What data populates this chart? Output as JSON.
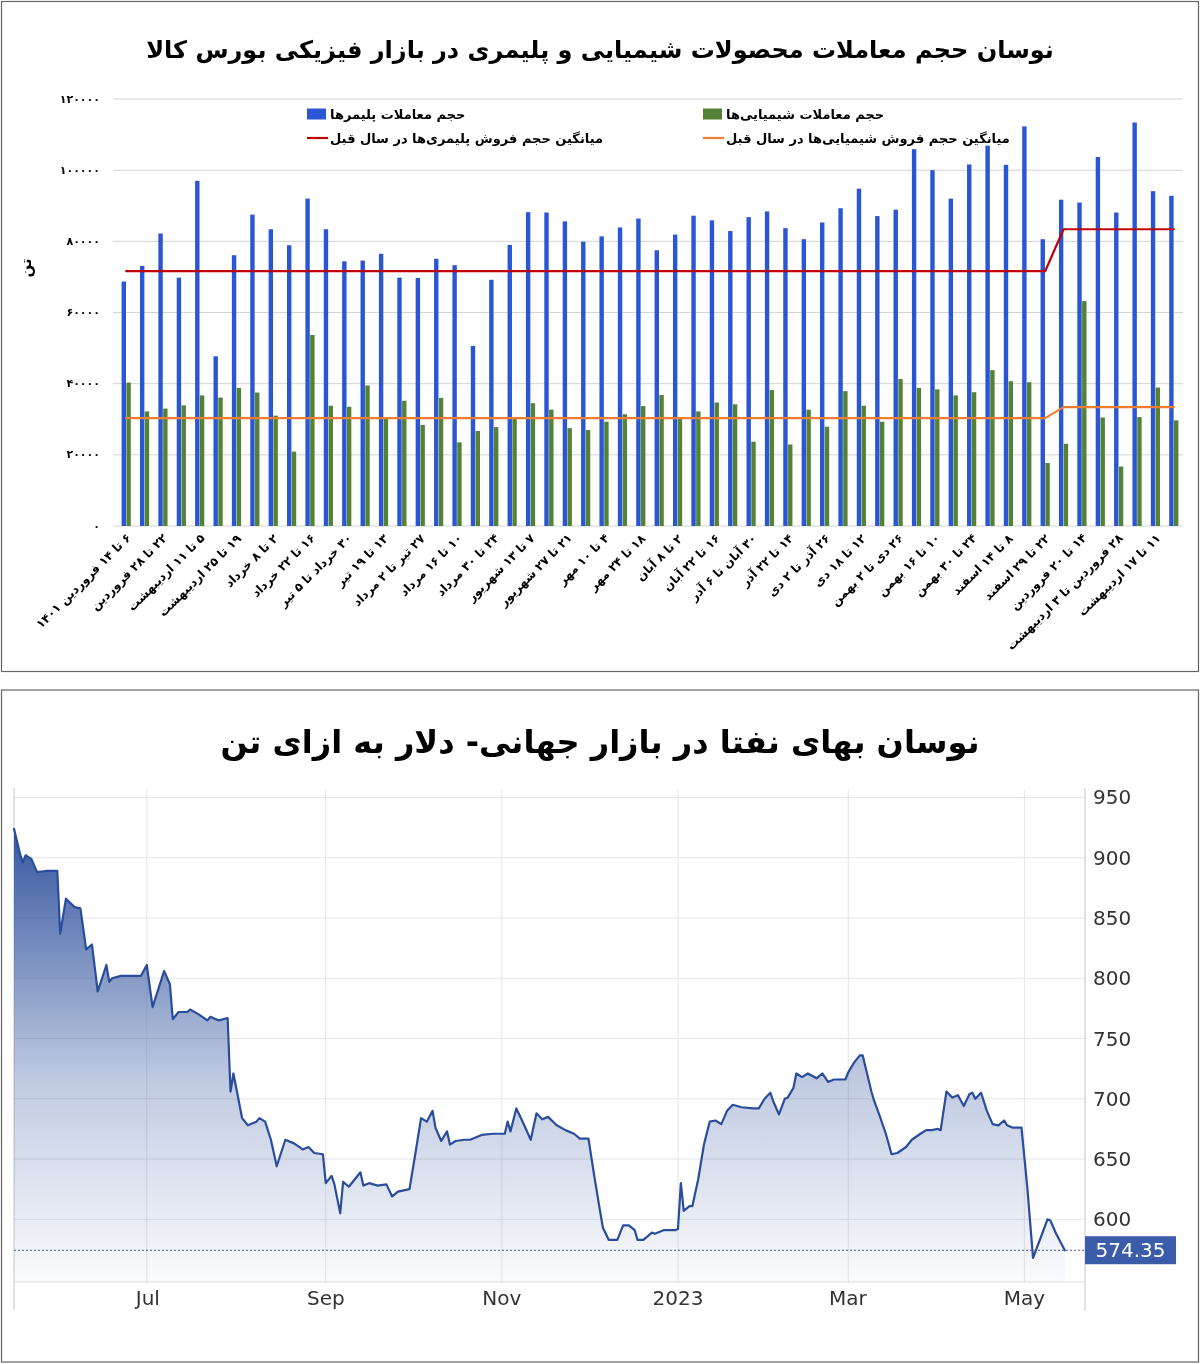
{
  "chart_data": [
    {
      "type": "bar",
      "title": "نوسان حجم معاملات محصولات شیمیایی و پلیمری در بازار فیزیکی بورس کالا",
      "ylabel": "تن",
      "categories": [
        "۶ تا ۱۴ فروردین ۱۴۰۱",
        null,
        "۲۲ تا ۲۸ فروردین",
        null,
        "۵ تا ۱۱ اردیبهشت",
        null,
        "۱۹ تا ۲۵ اردیبهشت",
        null,
        "۲ تا ۸ خرداد",
        null,
        "۱۶ تا ۲۲ خرداد",
        null,
        "۳۰ خرداد تا ۵ تیر",
        null,
        "۱۳ تا ۱۹ تیر",
        null,
        "۲۷ تیر تا ۲ مرداد",
        null,
        "۱۰ تا ۱۶ مرداد",
        null,
        "۲۴ تا ۳۰ مرداد",
        null,
        "۷ تا ۱۳ شهریور",
        null,
        "۲۱ تا ۲۷ شهریور",
        null,
        "۴ تا ۱۰ مهر",
        null,
        "۱۸ تا ۲۴ مهر",
        null,
        "۲ تا ۸ آبان",
        null,
        "۱۶ تا ۲۲ آبان",
        null,
        "۳۰ آبان تا ۶ آذر",
        null,
        "۱۴ تا ۲۲ آذر",
        null,
        "۲۶ آذر تا ۲ دی",
        null,
        "۱۲ تا ۱۸ دی",
        null,
        "۲۶ دی تا ۲ بهمن",
        null,
        "۱۰ تا ۱۶ بهمن",
        null,
        "۲۴ تا ۳۰ بهمن",
        null,
        "۸ تا ۱۴ اسفند",
        null,
        "۲۲ تا ۲۹ اسفند",
        null,
        "۱۴ تا ۲۰ فروردین",
        null,
        "۲۸ فروردین تا ۳ اردیبهشت",
        null,
        "۱۱ تا ۱۷ اردیبهشت",
        null
      ],
      "series": [
        {
          "name": "حجم معاملات پلیمرها",
          "color": "#2a56d6",
          "values": [
            68700,
            73100,
            82200,
            69800,
            97000,
            47700,
            76100,
            87500,
            83400,
            78900,
            92000,
            83400,
            74400,
            74600,
            76500,
            69800,
            69700,
            75100,
            73300,
            50600,
            69200,
            79000,
            88200,
            88100,
            85600,
            79900,
            81400,
            83900,
            86400,
            77500,
            81900,
            87200,
            85900,
            82900,
            86800,
            88400,
            83700,
            80600,
            85300,
            89300,
            94800,
            87100,
            88900,
            105900,
            100000,
            92000,
            101600,
            106900,
            101500,
            112300,
            80600,
            91700,
            90900,
            103700,
            88100,
            113400,
            94100,
            92800
          ]
        },
        {
          "name": "حجم معاملات شیمیایی‌ها",
          "color": "#548235",
          "values": [
            40300,
            32200,
            33000,
            33900,
            36700,
            36100,
            38800,
            37500,
            31000,
            20900,
            53700,
            33800,
            33500,
            39500,
            30300,
            35200,
            28400,
            36000,
            23500,
            26700,
            27800,
            30300,
            34500,
            32700,
            27500,
            27000,
            29300,
            31400,
            33700,
            36800,
            30300,
            32200,
            34700,
            34200,
            23700,
            38200,
            22900,
            32700,
            27900,
            37900,
            33800,
            29300,
            41300,
            38800,
            38400,
            36700,
            37600,
            43800,
            40700,
            40400,
            17700,
            23100,
            63200,
            30500,
            16700,
            30600,
            38900,
            29700
          ]
        },
        {
          "name": "میانگین حجم فروش پلیمری‌ها در سال قبل",
          "type": "line",
          "color": "#c00000",
          "values": [
            71600,
            71600,
            71600,
            71600,
            71600,
            71600,
            71600,
            71600,
            71600,
            71600,
            71600,
            71600,
            71600,
            71600,
            71600,
            71600,
            71600,
            71600,
            71600,
            71600,
            71600,
            71600,
            71600,
            71600,
            71600,
            71600,
            71600,
            71600,
            71600,
            71600,
            71600,
            71600,
            71600,
            71600,
            71600,
            71600,
            71600,
            71600,
            71600,
            71600,
            71600,
            71600,
            71600,
            71600,
            71600,
            71600,
            71600,
            71600,
            71600,
            71600,
            71600,
            83400,
            83400,
            83400,
            83400,
            83400,
            83400,
            83400
          ]
        },
        {
          "name": "میانگین حجم فروش شیمیایی‌ها در سال قبل",
          "type": "line",
          "color": "#ed7d31",
          "values": [
            30300,
            30300,
            30300,
            30300,
            30300,
            30300,
            30300,
            30300,
            30300,
            30300,
            30300,
            30300,
            30300,
            30300,
            30300,
            30300,
            30300,
            30300,
            30300,
            30300,
            30300,
            30300,
            30300,
            30300,
            30300,
            30300,
            30300,
            30300,
            30300,
            30300,
            30300,
            30300,
            30300,
            30300,
            30300,
            30300,
            30300,
            30300,
            30300,
            30300,
            30300,
            30300,
            30300,
            30300,
            30300,
            30300,
            30300,
            30300,
            30300,
            30300,
            30300,
            33400,
            33400,
            33400,
            33400,
            33400,
            33400,
            33400
          ]
        }
      ],
      "ylim": [
        0,
        120000
      ],
      "yticks": [
        {
          "value": 0,
          "label": "۰"
        },
        {
          "value": 20000,
          "label": "۲۰۰۰۰"
        },
        {
          "value": 40000,
          "label": "۴۰۰۰۰"
        },
        {
          "value": 60000,
          "label": "۶۰۰۰۰"
        },
        {
          "value": 80000,
          "label": "۸۰۰۰۰"
        },
        {
          "value": 100000,
          "label": "۱۰۰۰۰۰"
        },
        {
          "value": 120000,
          "label": "۱۲۰۰۰۰"
        }
      ],
      "grid": "y",
      "legend": "top"
    },
    {
      "type": "area",
      "title": "نوسان بهای نفتا در بازار جهانی- دلار به ازای تن",
      "color": "#2a4d9b",
      "x": [
        "2022-05-16",
        "2022-05-18",
        "2022-05-19",
        "2022-05-20",
        "2022-05-22",
        "2022-05-24",
        "2022-05-27",
        "2022-05-31",
        "2022-06-01",
        "2022-06-03",
        "2022-06-06",
        "2022-06-08",
        "2022-06-10",
        "2022-06-12",
        "2022-06-14",
        "2022-06-17",
        "2022-06-18",
        "2022-06-19",
        "2022-06-22",
        "2022-06-27",
        "2022-06-29",
        "2022-07-01",
        "2022-07-03",
        "2022-07-05",
        "2022-07-07",
        "2022-07-09",
        "2022-07-10",
        "2022-07-12",
        "2022-07-15",
        "2022-07-16",
        "2022-07-19",
        "2022-07-22",
        "2022-07-23",
        "2022-07-26",
        "2022-07-29",
        "2022-07-30",
        "2022-07-31",
        "2022-08-01",
        "2022-08-03",
        "2022-08-05",
        "2022-08-08",
        "2022-08-09",
        "2022-08-11",
        "2022-08-13",
        "2022-08-15",
        "2022-08-18",
        "2022-08-21",
        "2022-08-24",
        "2022-08-26",
        "2022-08-28",
        "2022-08-31",
        "2022-09-01",
        "2022-09-03",
        "2022-09-04",
        "2022-09-06",
        "2022-09-07",
        "2022-09-09",
        "2022-09-11",
        "2022-09-13",
        "2022-09-14",
        "2022-09-16",
        "2022-09-19",
        "2022-09-22",
        "2022-09-24",
        "2022-09-26",
        "2022-09-30",
        "2022-10-02",
        "2022-10-04",
        "2022-10-06",
        "2022-10-08",
        "2022-10-09",
        "2022-10-11",
        "2022-10-13",
        "2022-10-14",
        "2022-10-16",
        "2022-10-19",
        "2022-10-21",
        "2022-10-25",
        "2022-10-29",
        "2022-11-02",
        "2022-11-03",
        "2022-11-04",
        "2022-11-06",
        "2022-11-08",
        "2022-11-11",
        "2022-11-13",
        "2022-11-15",
        "2022-11-17",
        "2022-11-20",
        "2022-11-23",
        "2022-11-26",
        "2022-11-28",
        "2022-12-01",
        "2022-12-03",
        "2022-12-05",
        "2022-12-06",
        "2022-12-08",
        "2022-12-11",
        "2022-12-13",
        "2022-12-15",
        "2022-12-17",
        "2022-12-18",
        "2022-12-20",
        "2022-12-23",
        "2022-12-24",
        "2022-12-27",
        "2022-12-31",
        "2023-01-01",
        "2023-01-02",
        "2023-01-03",
        "2023-01-05",
        "2023-01-06",
        "2023-01-08",
        "2023-01-10",
        "2023-01-12",
        "2023-01-14",
        "2023-01-16",
        "2023-01-18",
        "2023-01-20",
        "2023-01-23",
        "2023-01-27",
        "2023-01-29",
        "2023-01-31",
        "2023-02-02",
        "2023-02-03",
        "2023-02-05",
        "2023-02-07",
        "2023-02-08",
        "2023-02-10",
        "2023-02-11",
        "2023-02-13",
        "2023-02-15",
        "2023-02-18",
        "2023-02-20",
        "2023-02-22",
        "2023-02-24",
        "2023-02-28",
        "2023-03-01",
        "2023-03-03",
        "2023-03-05",
        "2023-03-06",
        "2023-03-08",
        "2023-03-09",
        "2023-03-10",
        "2023-03-12",
        "2023-03-14",
        "2023-03-16",
        "2023-03-18",
        "2023-03-21",
        "2023-03-23",
        "2023-03-26",
        "2023-03-28",
        "2023-03-30",
        "2023-04-01",
        "2023-04-02",
        "2023-04-04",
        "2023-04-06",
        "2023-04-08",
        "2023-04-10",
        "2023-04-12",
        "2023-04-13",
        "2023-04-14",
        "2023-04-16",
        "2023-04-18",
        "2023-04-20",
        "2023-04-22",
        "2023-04-24",
        "2023-04-25",
        "2023-04-27",
        "2023-04-30",
        "2023-05-02",
        "2023-05-04",
        "2023-05-07",
        "2023-05-09",
        "2023-05-10",
        "2023-05-12",
        "2023-05-15"
      ],
      "values": [
        924,
        904,
        896,
        902,
        899,
        888,
        889,
        889,
        837,
        866,
        859,
        858,
        824,
        828,
        789,
        811,
        797,
        800,
        802,
        802,
        802,
        811,
        776,
        791,
        806,
        795,
        766,
        772,
        772,
        774,
        770,
        765,
        768,
        765,
        767,
        706,
        721,
        709,
        684,
        678,
        681,
        684,
        681,
        666,
        644,
        666,
        663,
        658,
        660,
        655,
        654,
        630,
        636,
        629,
        605,
        631,
        627,
        633,
        639,
        628,
        630,
        628,
        629,
        619,
        623,
        625,
        654,
        684,
        681,
        690,
        676,
        665,
        673,
        662,
        665,
        666,
        666,
        670,
        671,
        671,
        681,
        673,
        692,
        682,
        666,
        688,
        683,
        685,
        678,
        674,
        671,
        667,
        667,
        636,
        607,
        593,
        583,
        583,
        595,
        595,
        591,
        583,
        583,
        589,
        588,
        591,
        591,
        592,
        630,
        607,
        611,
        611,
        633,
        662,
        681,
        682,
        679,
        690,
        695,
        693,
        692,
        692,
        700,
        705,
        698,
        687,
        700,
        701,
        709,
        721,
        718,
        721,
        717,
        721,
        714,
        716,
        716,
        722,
        730,
        736,
        736,
        716,
        706,
        698,
        685,
        671,
        654,
        655,
        660,
        666,
        671,
        674,
        674,
        675,
        674,
        706,
        701,
        703,
        694,
        704,
        705,
        700,
        705,
        690,
        679,
        678,
        682,
        678,
        676,
        676,
        627,
        568,
        587,
        600,
        599,
        588,
        574.35
      ],
      "xlim": [
        "2022-05-16",
        "2023-05-22"
      ],
      "xticks": [
        {
          "value": "2022-07-01",
          "label": "Jul"
        },
        {
          "value": "2022-09-01",
          "label": "Sep"
        },
        {
          "value": "2022-11-01",
          "label": "Nov"
        },
        {
          "value": "2023-01-01",
          "label": "2023"
        },
        {
          "value": "2023-03-01",
          "label": "Mar"
        },
        {
          "value": "2023-05-01",
          "label": "May"
        }
      ],
      "ylim": [
        548,
        957
      ],
      "yticks": [
        600,
        650,
        700,
        750,
        800,
        850,
        900,
        950
      ],
      "grid": true,
      "ref_lines": [
        {
          "axis": "y",
          "value": 574.35,
          "label": "574.35",
          "color": "#3b5ca8",
          "line_style": "dotted"
        }
      ]
    }
  ]
}
